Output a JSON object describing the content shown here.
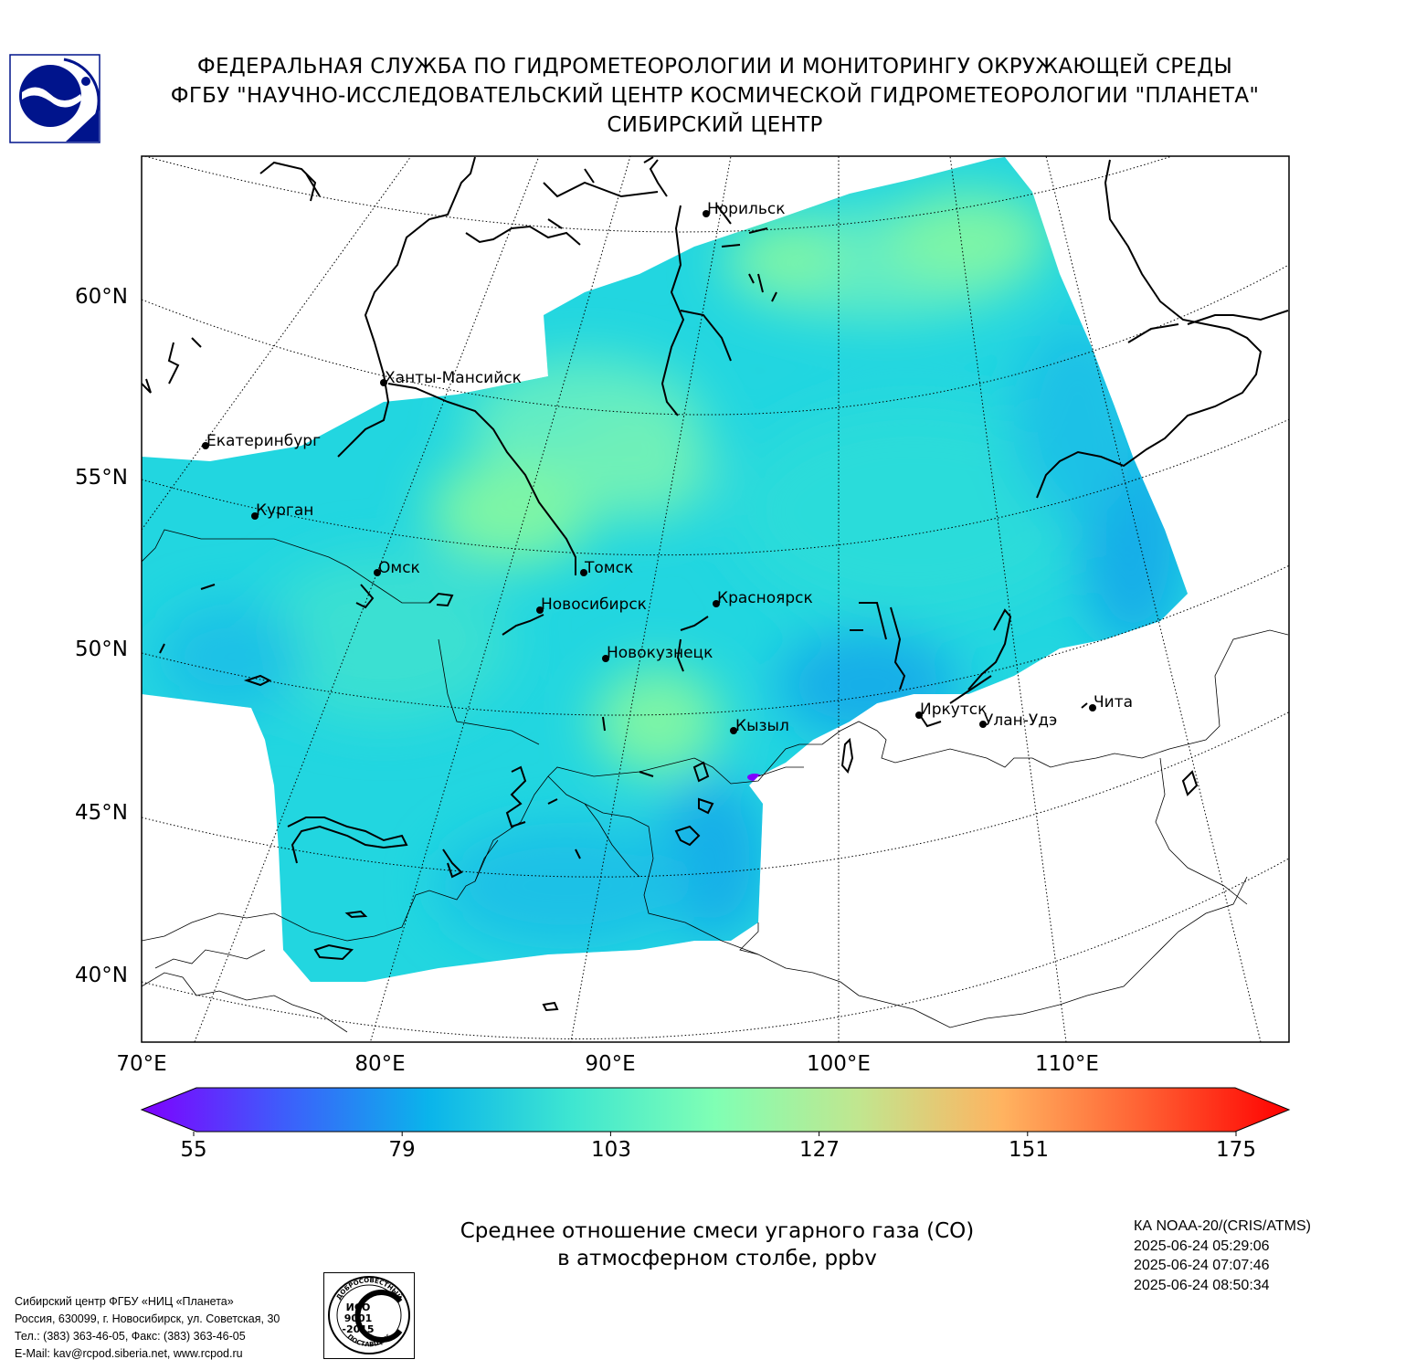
{
  "header": {
    "line1": "ФЕДЕРАЛЬНАЯ СЛУЖБА ПО ГИДРОМЕТЕОРОЛОГИИ И МОНИТОРИНГУ ОКРУЖАЮЩЕЙ СРЕДЫ",
    "line2": "ФГБУ \"НАУЧНО-ИССЛЕДОВАТЕЛЬСКИЙ ЦЕНТР КОСМИЧЕСКОЙ ГИДРОМЕТЕОРОЛОГИИ \"ПЛАНЕТА\"",
    "line3": "СИБИРСКИЙ ЦЕНТР"
  },
  "logo": {
    "icon": "roshydromet-planeta-logo",
    "color": "#00148c"
  },
  "map": {
    "lat_labels": [
      "60°N",
      "55°N",
      "50°N",
      "45°N",
      "40°N"
    ],
    "lon_labels": [
      "70°E",
      "80°E",
      "90°E",
      "100°E",
      "110°E"
    ],
    "cities": {
      "norilsk": "Норильск",
      "khanty": "Ханты-Мансийск",
      "ekb": "Екатеринбург",
      "kurgan": "Курган",
      "omsk": "Омск",
      "tomsk": "Томск",
      "novosibirsk": "Новосибирск",
      "krasnoyarsk": "Красноярск",
      "novokuznetsk": "Новокузнецк",
      "irkutsk": "Иркутск",
      "ulanude": "Улан-Удэ",
      "chita": "Чита",
      "kyzyl": "Кызыл"
    },
    "field_colors": [
      "#22d6e0",
      "#3ae0d2",
      "#62ecc4",
      "#1bc1e6",
      "#13aee8",
      "#7ef5a6"
    ]
  },
  "colorbar": {
    "min": 55,
    "max": 175,
    "ticks": [
      "55",
      "79",
      "103",
      "127",
      "151",
      "175"
    ],
    "colors": [
      "#7f00ff",
      "#3d5efb",
      "#0ab4eb",
      "#3ee6d1",
      "#80ffb4",
      "#c1e68f",
      "#ffb360",
      "#ff5f32",
      "#ff0000"
    ]
  },
  "caption": {
    "line1": "Среднее отношение смеси угарного газа (CO)",
    "line2": "в атмосферном столбе, ppbv"
  },
  "satellite": {
    "name": "КА NOAA-20/(CRIS/ATMS)",
    "t1": "2025-06-24 05:29:06",
    "t2": "2025-06-24 07:07:46",
    "t3": "2025-06-24 08:50:34"
  },
  "footer": {
    "line1": "Сибирский центр ФГБУ «НИЦ «Планета»",
    "line2": "Россия, 630099, г. Новосибирск, ул. Советская, 30",
    "line3": "Тел.: (383) 363-46-05, Факс: (383) 363-46-05",
    "line4": "E-Mail: kav@rcpod.siberia.net, www.rcpod.ru"
  },
  "iso_stamp": {
    "top": "ДОБРОСОВЕСТНЫЙ",
    "l1": "ИСО",
    "l2": "9001",
    "l3": "-2015",
    "bottom": "ПОСТАВЩИК"
  }
}
